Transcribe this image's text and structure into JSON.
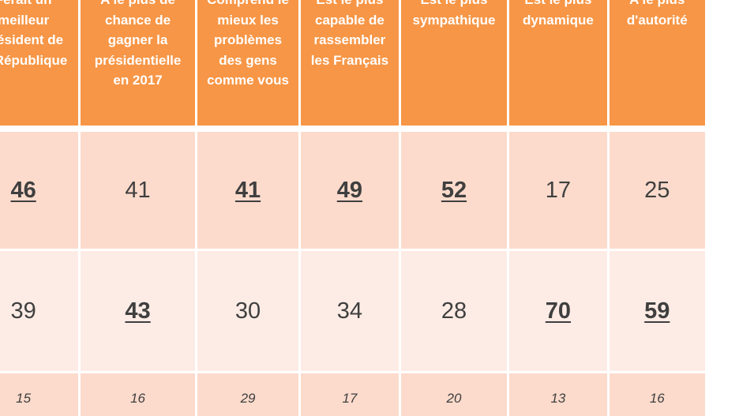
{
  "headers": [
    "Ferait un meilleur président de la République",
    "A le plus de chance de gagner la présidentielle en 2017",
    "Comprend le mieux les problèmes des gens comme vous",
    "Est le plus capable de rassembler les Français",
    "Est le plus sympathique",
    "Est le plus dynamique",
    "A le plus d'autorité"
  ],
  "header_lines": [
    [
      "Ferait un",
      "meilleur",
      "président de",
      "la République"
    ],
    [
      "A le plus de",
      "chance de",
      "gagner la",
      "présidentielle",
      "en 2017"
    ],
    [
      "Comprend le",
      "mieux les",
      "problèmes",
      "des gens",
      "comme vous"
    ],
    [
      "Est le plus",
      "capable de",
      "rassembler",
      "les Français"
    ],
    [
      "Est le plus",
      "sympathique"
    ],
    [
      "Est le plus",
      "dynamique"
    ],
    [
      "A le plus",
      "d'autorité"
    ]
  ],
  "rows": [
    {
      "values": [
        "46",
        "41",
        "41",
        "49",
        "52",
        "17",
        "25"
      ],
      "highlighted": [
        true,
        false,
        true,
        true,
        true,
        false,
        false
      ]
    },
    {
      "values": [
        "39",
        "43",
        "30",
        "34",
        "28",
        "70",
        "59"
      ],
      "highlighted": [
        false,
        true,
        false,
        false,
        false,
        true,
        true
      ]
    },
    {
      "values": [
        "15",
        "16",
        "29",
        "17",
        "20",
        "13",
        "16"
      ],
      "highlighted": [
        false,
        false,
        false,
        false,
        false,
        false,
        false
      ]
    }
  ],
  "colors": {
    "header_bg": "#f79646",
    "row_a_bg": "#fcdbcc",
    "row_b_bg": "#fdece5",
    "text": "#3f3f3f"
  }
}
